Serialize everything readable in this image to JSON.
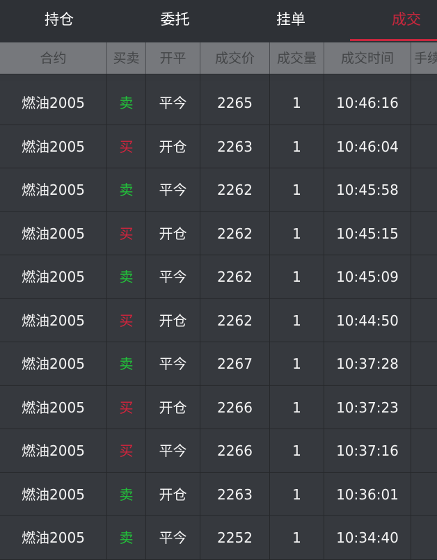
{
  "tabs": [
    {
      "label": "持仓"
    },
    {
      "label": "委托"
    },
    {
      "label": "挂单"
    },
    {
      "label": "成交",
      "active": true
    }
  ],
  "columns": [
    "合约",
    "买卖",
    "开平",
    "成交价",
    "成交量",
    "成交时间",
    "手续费"
  ],
  "colors": {
    "buy": "#d5243d",
    "sell": "#22c33a",
    "active_tab": "#c8273d"
  },
  "rows": [
    {
      "contract": "燃油2005",
      "side": "卖",
      "offset": "平今",
      "price": "2265",
      "qty": "1",
      "time": "10:46:16"
    },
    {
      "contract": "燃油2005",
      "side": "买",
      "offset": "开仓",
      "price": "2263",
      "qty": "1",
      "time": "10:46:04"
    },
    {
      "contract": "燃油2005",
      "side": "卖",
      "offset": "平今",
      "price": "2262",
      "qty": "1",
      "time": "10:45:58"
    },
    {
      "contract": "燃油2005",
      "side": "买",
      "offset": "开仓",
      "price": "2262",
      "qty": "1",
      "time": "10:45:15"
    },
    {
      "contract": "燃油2005",
      "side": "卖",
      "offset": "平今",
      "price": "2262",
      "qty": "1",
      "time": "10:45:09"
    },
    {
      "contract": "燃油2005",
      "side": "买",
      "offset": "开仓",
      "price": "2262",
      "qty": "1",
      "time": "10:44:50"
    },
    {
      "contract": "燃油2005",
      "side": "卖",
      "offset": "平今",
      "price": "2267",
      "qty": "1",
      "time": "10:37:28"
    },
    {
      "contract": "燃油2005",
      "side": "买",
      "offset": "开仓",
      "price": "2266",
      "qty": "1",
      "time": "10:37:23"
    },
    {
      "contract": "燃油2005",
      "side": "买",
      "offset": "平今",
      "price": "2266",
      "qty": "1",
      "time": "10:37:16"
    },
    {
      "contract": "燃油2005",
      "side": "卖",
      "offset": "开仓",
      "price": "2263",
      "qty": "1",
      "time": "10:36:01"
    },
    {
      "contract": "燃油2005",
      "side": "卖",
      "offset": "平今",
      "price": "2252",
      "qty": "1",
      "time": "10:34:40"
    }
  ]
}
